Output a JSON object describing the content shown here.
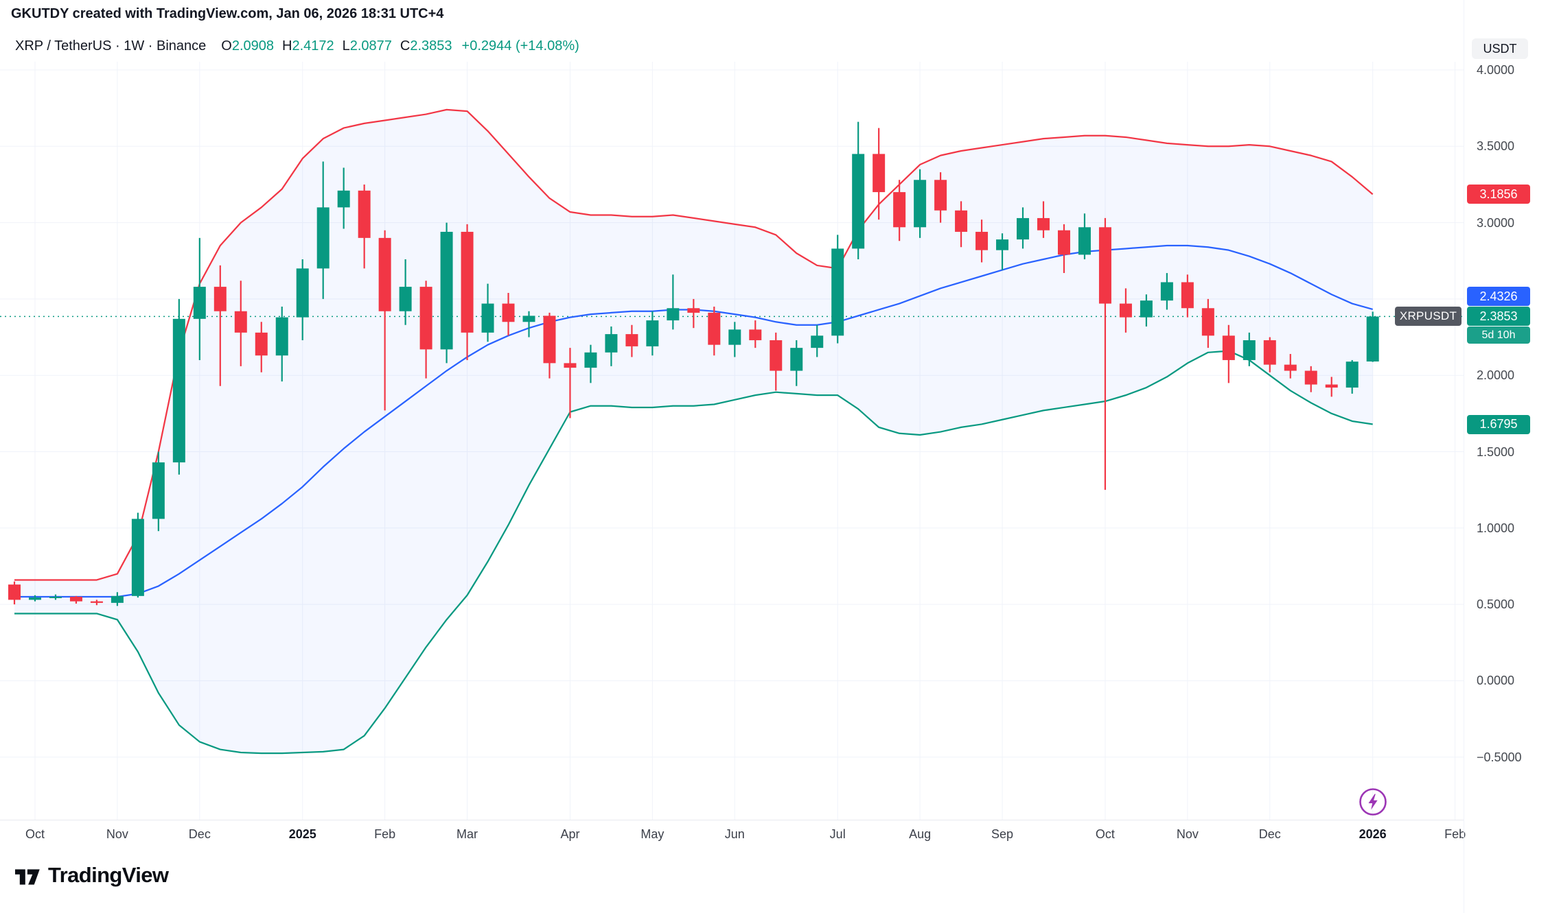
{
  "attribution": "GKUTDY created with TradingView.com, Jan 06, 2026 18:31 UTC+4",
  "header": {
    "title": "XRP / TetherUS · 1W · Binance",
    "ohlc": {
      "o_label": "O",
      "o_value": "2.0908",
      "h_label": "H",
      "h_value": "2.4172",
      "l_label": "L",
      "l_value": "2.0877",
      "c_label": "C",
      "c_value": "2.3853",
      "change": "+0.2944 (+14.08%)"
    }
  },
  "price_axis": {
    "unit": "USDT",
    "ticks": [
      {
        "label": "4.0000",
        "value": 4.0
      },
      {
        "label": "3.5000",
        "value": 3.5
      },
      {
        "label": "3.0000",
        "value": 3.0
      },
      {
        "label": "2.0000",
        "value": 2.0
      },
      {
        "label": "1.5000",
        "value": 1.5
      },
      {
        "label": "1.0000",
        "value": 1.0
      },
      {
        "label": "0.5000",
        "value": 0.5
      },
      {
        "label": "0.0000",
        "value": 0.0
      },
      {
        "label": "−0.5000",
        "value": -0.5
      }
    ],
    "price_labels": [
      {
        "name": "bb-upper-price-label",
        "text": "3.1856",
        "value": 3.1856,
        "bg": "#f23645"
      },
      {
        "name": "bb-basis-price-label",
        "text": "2.4326",
        "value": 2.4326,
        "bg": "#2962ff"
      },
      {
        "name": "last-price-label",
        "text": "2.3853",
        "value": 2.3853,
        "bg": "#089981"
      },
      {
        "name": "bb-lower-price-label",
        "text": "1.6795",
        "value": 1.6795,
        "bg": "#089981"
      }
    ],
    "countdown": "5d 10h",
    "symbol_tag": "XRPUSDT"
  },
  "time_axis": {
    "labels": [
      {
        "text": "Oct",
        "index": 1,
        "bold": false
      },
      {
        "text": "Nov",
        "index": 5,
        "bold": false
      },
      {
        "text": "Dec",
        "index": 9,
        "bold": false
      },
      {
        "text": "2025",
        "index": 14,
        "bold": true
      },
      {
        "text": "Feb",
        "index": 18,
        "bold": false
      },
      {
        "text": "Mar",
        "index": 22,
        "bold": false
      },
      {
        "text": "Apr",
        "index": 27,
        "bold": false
      },
      {
        "text": "May",
        "index": 31,
        "bold": false
      },
      {
        "text": "Jun",
        "index": 35,
        "bold": false
      },
      {
        "text": "Jul",
        "index": 40,
        "bold": false
      },
      {
        "text": "Aug",
        "index": 44,
        "bold": false
      },
      {
        "text": "Sep",
        "index": 48,
        "bold": false
      },
      {
        "text": "Oct",
        "index": 53,
        "bold": false
      },
      {
        "text": "Nov",
        "index": 57,
        "bold": false
      },
      {
        "text": "Dec",
        "index": 61,
        "bold": false
      },
      {
        "text": "2026",
        "index": 66,
        "bold": true
      },
      {
        "text": "Feb",
        "index": 70,
        "bold": false
      }
    ]
  },
  "watermark_logo": "TradingView",
  "chart_data": {
    "type": "candlestick",
    "symbol": "XRPUSDT",
    "interval": "1W",
    "ylim": [
      -0.5,
      4.0
    ],
    "grid_values": [
      4.0,
      3.5,
      3.0,
      2.5,
      2.0,
      1.5,
      1.0,
      0.5,
      0.0,
      -0.5
    ],
    "last_close": 2.3853,
    "current_bar": {
      "open": 2.0908,
      "high": 2.4172,
      "low": 2.0877,
      "close": 2.3853,
      "change": 0.2944,
      "change_pct": 14.08
    },
    "candles": [
      [
        0.63,
        0.65,
        0.5,
        0.53
      ],
      [
        0.53,
        0.56,
        0.52,
        0.545
      ],
      [
        0.545,
        0.565,
        0.53,
        0.55
      ],
      [
        0.55,
        0.555,
        0.505,
        0.52
      ],
      [
        0.52,
        0.53,
        0.495,
        0.51
      ],
      [
        0.51,
        0.58,
        0.49,
        0.555
      ],
      [
        0.555,
        1.1,
        0.545,
        1.06
      ],
      [
        1.06,
        1.5,
        0.98,
        1.43
      ],
      [
        1.43,
        2.5,
        1.35,
        2.37
      ],
      [
        2.37,
        2.9,
        2.1,
        2.58
      ],
      [
        2.58,
        2.72,
        1.93,
        2.42
      ],
      [
        2.42,
        2.62,
        2.06,
        2.28
      ],
      [
        2.28,
        2.35,
        2.02,
        2.13
      ],
      [
        2.13,
        2.45,
        1.96,
        2.38
      ],
      [
        2.38,
        2.76,
        2.23,
        2.7
      ],
      [
        2.7,
        3.4,
        2.5,
        3.1
      ],
      [
        3.1,
        3.36,
        2.96,
        3.21
      ],
      [
        3.21,
        3.25,
        2.7,
        2.9
      ],
      [
        2.9,
        2.95,
        1.77,
        2.42
      ],
      [
        2.42,
        2.76,
        2.33,
        2.58
      ],
      [
        2.58,
        2.62,
        1.98,
        2.17
      ],
      [
        2.17,
        3.0,
        2.08,
        2.94
      ],
      [
        2.94,
        2.99,
        2.1,
        2.28
      ],
      [
        2.28,
        2.6,
        2.22,
        2.47
      ],
      [
        2.47,
        2.54,
        2.26,
        2.35
      ],
      [
        2.35,
        2.42,
        2.25,
        2.39
      ],
      [
        2.39,
        2.41,
        1.98,
        2.08
      ],
      [
        2.08,
        2.18,
        1.72,
        2.05
      ],
      [
        2.05,
        2.2,
        1.95,
        2.15
      ],
      [
        2.15,
        2.32,
        2.06,
        2.27
      ],
      [
        2.27,
        2.33,
        2.12,
        2.19
      ],
      [
        2.19,
        2.42,
        2.13,
        2.36
      ],
      [
        2.36,
        2.66,
        2.3,
        2.44
      ],
      [
        2.44,
        2.5,
        2.31,
        2.41
      ],
      [
        2.41,
        2.45,
        2.13,
        2.2
      ],
      [
        2.2,
        2.35,
        2.12,
        2.3
      ],
      [
        2.3,
        2.36,
        2.18,
        2.23
      ],
      [
        2.23,
        2.28,
        1.9,
        2.03
      ],
      [
        2.03,
        2.23,
        1.93,
        2.18
      ],
      [
        2.18,
        2.33,
        2.12,
        2.26
      ],
      [
        2.26,
        2.92,
        2.21,
        2.83
      ],
      [
        2.83,
        3.66,
        2.76,
        3.45
      ],
      [
        3.45,
        3.62,
        3.02,
        3.2
      ],
      [
        3.2,
        3.28,
        2.88,
        2.97
      ],
      [
        2.97,
        3.35,
        2.9,
        3.28
      ],
      [
        3.28,
        3.33,
        3.0,
        3.08
      ],
      [
        3.08,
        3.14,
        2.84,
        2.94
      ],
      [
        2.94,
        3.02,
        2.74,
        2.82
      ],
      [
        2.82,
        2.93,
        2.69,
        2.89
      ],
      [
        2.89,
        3.1,
        2.83,
        3.03
      ],
      [
        3.03,
        3.14,
        2.9,
        2.95
      ],
      [
        2.95,
        2.99,
        2.67,
        2.79
      ],
      [
        2.79,
        3.06,
        2.76,
        2.97
      ],
      [
        2.97,
        3.03,
        1.25,
        2.47
      ],
      [
        2.47,
        2.57,
        2.28,
        2.38
      ],
      [
        2.38,
        2.53,
        2.32,
        2.49
      ],
      [
        2.49,
        2.67,
        2.43,
        2.61
      ],
      [
        2.61,
        2.66,
        2.38,
        2.44
      ],
      [
        2.44,
        2.5,
        2.18,
        2.26
      ],
      [
        2.26,
        2.33,
        1.95,
        2.1
      ],
      [
        2.1,
        2.28,
        2.06,
        2.23
      ],
      [
        2.23,
        2.25,
        2.02,
        2.07
      ],
      [
        2.07,
        2.14,
        1.98,
        2.03
      ],
      [
        2.03,
        2.06,
        1.89,
        1.94
      ],
      [
        1.94,
        1.99,
        1.86,
        1.92
      ],
      [
        1.92,
        2.1,
        1.88,
        2.09
      ],
      [
        2.0908,
        2.4172,
        2.0877,
        2.3853
      ]
    ],
    "bollinger_bands": {
      "upper": [
        0.66,
        0.66,
        0.66,
        0.66,
        0.66,
        0.7,
        0.95,
        1.5,
        2.15,
        2.6,
        2.85,
        3.0,
        3.1,
        3.22,
        3.42,
        3.55,
        3.62,
        3.65,
        3.67,
        3.69,
        3.71,
        3.74,
        3.73,
        3.6,
        3.45,
        3.3,
        3.16,
        3.07,
        3.05,
        3.05,
        3.04,
        3.04,
        3.05,
        3.03,
        3.01,
        2.99,
        2.97,
        2.92,
        2.8,
        2.72,
        2.7,
        2.95,
        3.12,
        3.25,
        3.38,
        3.44,
        3.47,
        3.49,
        3.51,
        3.53,
        3.55,
        3.56,
        3.57,
        3.57,
        3.56,
        3.54,
        3.52,
        3.51,
        3.5,
        3.5,
        3.51,
        3.5,
        3.47,
        3.44,
        3.4,
        3.3,
        3.1856
      ],
      "basis": [
        0.55,
        0.55,
        0.55,
        0.55,
        0.55,
        0.55,
        0.57,
        0.62,
        0.7,
        0.79,
        0.88,
        0.97,
        1.06,
        1.16,
        1.27,
        1.4,
        1.52,
        1.63,
        1.73,
        1.83,
        1.93,
        2.03,
        2.12,
        2.2,
        2.26,
        2.31,
        2.35,
        2.38,
        2.4,
        2.41,
        2.42,
        2.42,
        2.43,
        2.43,
        2.42,
        2.4,
        2.38,
        2.35,
        2.33,
        2.33,
        2.35,
        2.39,
        2.43,
        2.47,
        2.52,
        2.57,
        2.61,
        2.65,
        2.69,
        2.73,
        2.76,
        2.79,
        2.81,
        2.82,
        2.83,
        2.84,
        2.85,
        2.85,
        2.84,
        2.82,
        2.78,
        2.73,
        2.67,
        2.6,
        2.53,
        2.47,
        2.4326
      ],
      "lower": [
        0.44,
        0.44,
        0.44,
        0.44,
        0.44,
        0.4,
        0.19,
        -0.08,
        -0.29,
        -0.4,
        -0.45,
        -0.47,
        -0.475,
        -0.475,
        -0.47,
        -0.465,
        -0.45,
        -0.36,
        -0.18,
        0.02,
        0.22,
        0.4,
        0.56,
        0.78,
        1.02,
        1.28,
        1.52,
        1.76,
        1.8,
        1.8,
        1.79,
        1.79,
        1.8,
        1.8,
        1.81,
        1.84,
        1.87,
        1.89,
        1.88,
        1.87,
        1.87,
        1.78,
        1.66,
        1.62,
        1.61,
        1.63,
        1.66,
        1.68,
        1.71,
        1.74,
        1.77,
        1.79,
        1.81,
        1.83,
        1.87,
        1.92,
        1.99,
        2.08,
        2.15,
        2.16,
        2.1,
        2.0,
        1.9,
        1.82,
        1.75,
        1.7,
        1.6795
      ]
    },
    "colors": {
      "up": "#089981",
      "down": "#f23645",
      "bb_upper": "#f23645",
      "bb_basis": "#2962ff",
      "bb_lower": "#089981",
      "bb_fill": "rgba(41,98,255,0.05)",
      "grid": "#f0f3fa"
    }
  }
}
